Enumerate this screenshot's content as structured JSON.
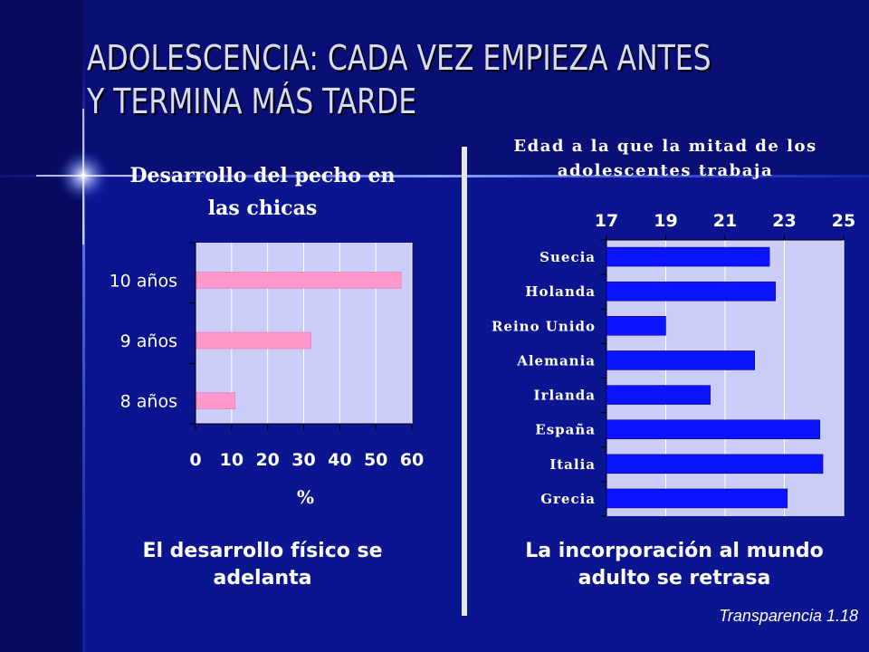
{
  "slide": {
    "title_line1": "ADOLESCENCIA: CADA VEZ EMPIEZA ANTES",
    "title_line2": "Y TERMINA MÁS TARDE",
    "left_caption_line1": "El desarrollo físico se",
    "left_caption_line2": "adelanta",
    "right_caption_line1": "La incorporación al mundo",
    "right_caption_line2": "adulto se retrasa",
    "footer": "Transparencia 1.18"
  },
  "colors": {
    "background": "#0a0f78",
    "plot_area": "#ccccf8",
    "left_bars": "#ff99cc",
    "right_bars": "#0a14ff"
  },
  "chart_data": [
    {
      "type": "bar",
      "orientation": "horizontal",
      "title_line1": "Desarrollo del pecho en",
      "title_line2": "las chicas",
      "categories": [
        "10 años",
        "9 años",
        "8 años"
      ],
      "values": [
        57,
        32,
        11
      ],
      "xlabel": "%",
      "ylabel": "",
      "xlim": [
        0,
        60
      ],
      "xticks": [
        0,
        10,
        20,
        30,
        40,
        50,
        60
      ],
      "grid": true,
      "legend": "none"
    },
    {
      "type": "bar",
      "orientation": "horizontal",
      "title_line1": "Edad a la que la mitad de los",
      "title_line2": "adolescentes trabaja",
      "categories": [
        "Suecia",
        "Holanda",
        "Reino Unido",
        "Alemania",
        "Irlanda",
        "España",
        "Italia",
        "Grecia"
      ],
      "values": [
        22.5,
        22.7,
        19,
        22,
        20.5,
        24.2,
        24.3,
        23.1
      ],
      "xlabel": "",
      "ylabel": "",
      "xlim": [
        17,
        25
      ],
      "xticks": [
        17,
        19,
        21,
        23,
        25
      ],
      "x_axis_position": "top",
      "grid": true,
      "legend": "none"
    }
  ]
}
